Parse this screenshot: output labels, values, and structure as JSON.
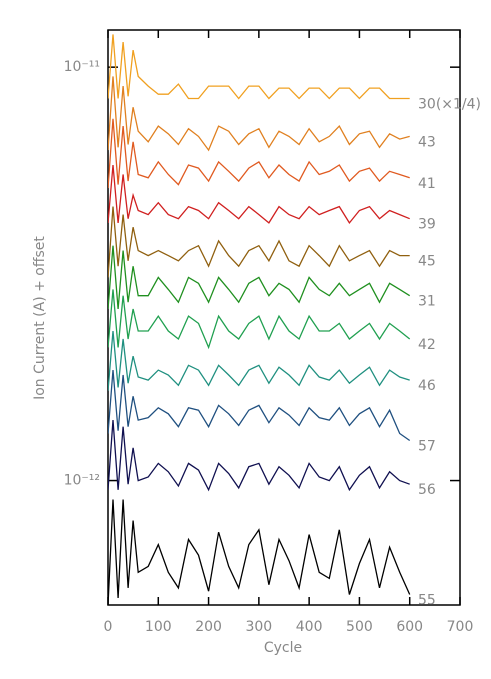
{
  "chart_data": {
    "type": "line",
    "xlabel": "Cycle",
    "ylabel": "Ion Current (A) + offset",
    "ylog": true,
    "xlim": [
      0,
      700
    ],
    "xticks": [
      0,
      100,
      200,
      300,
      400,
      500,
      600,
      700
    ],
    "ylim": [
      5e-13,
      1.23e-11
    ],
    "yticks": [
      {
        "value": 1e-12,
        "label": "10⁻¹²"
      },
      {
        "value": 1e-11,
        "label": "10⁻¹¹"
      }
    ],
    "x": [
      0,
      10,
      20,
      30,
      40,
      50,
      60,
      80,
      100,
      120,
      140,
      160,
      180,
      200,
      220,
      240,
      260,
      280,
      300,
      320,
      340,
      360,
      380,
      400,
      420,
      440,
      460,
      480,
      500,
      520,
      540,
      560,
      580,
      600
    ],
    "series": [
      {
        "name": "30(×1/4)",
        "color": "#f0a020",
        "values": [
          8.4e-12,
          1.2e-11,
          8.4e-12,
          1.15e-11,
          8.5e-12,
          1.1e-11,
          9.5e-12,
          9e-12,
          8.6e-12,
          8.6e-12,
          9.1e-12,
          8.4e-12,
          8.4e-12,
          9e-12,
          9e-12,
          9e-12,
          8.4e-12,
          9e-12,
          9e-12,
          8.4e-12,
          8.9e-12,
          8.9e-12,
          8.4e-12,
          8.9e-12,
          8.9e-12,
          8.4e-12,
          8.9e-12,
          8.9e-12,
          8.4e-12,
          8.9e-12,
          8.9e-12,
          8.4e-12,
          8.4e-12,
          8.4e-12
        ]
      },
      {
        "name": "43",
        "color": "#e08020",
        "values": [
          6.3e-12,
          9.5e-12,
          6.4e-12,
          9e-12,
          6.5e-12,
          8e-12,
          7e-12,
          6.6e-12,
          7.2e-12,
          6.9e-12,
          6.5e-12,
          7.1e-12,
          6.8e-12,
          6.3e-12,
          7.2e-12,
          7e-12,
          6.5e-12,
          6.9e-12,
          7.1e-12,
          6.4e-12,
          7e-12,
          6.8e-12,
          6.5e-12,
          7.1e-12,
          6.6e-12,
          6.8e-12,
          7.2e-12,
          6.5e-12,
          6.9e-12,
          7e-12,
          6.4e-12,
          6.9e-12,
          6.7e-12,
          6.8e-12
        ]
      },
      {
        "name": "41",
        "color": "#e05a20",
        "values": [
          5.1e-12,
          7.5e-12,
          5.2e-12,
          7.2e-12,
          5.3e-12,
          6.6e-12,
          5.5e-12,
          5.4e-12,
          5.9e-12,
          5.5e-12,
          5.2e-12,
          5.8e-12,
          5.7e-12,
          5.3e-12,
          5.9e-12,
          5.6e-12,
          5.3e-12,
          5.7e-12,
          5.9e-12,
          5.4e-12,
          5.8e-12,
          5.5e-12,
          5.3e-12,
          5.9e-12,
          5.5e-12,
          5.6e-12,
          5.8e-12,
          5.3e-12,
          5.6e-12,
          5.7e-12,
          5.3e-12,
          5.6e-12,
          5.5e-12,
          5.4e-12
        ]
      },
      {
        "name": "39",
        "color": "#d02020",
        "values": [
          4.2e-12,
          5.8e-12,
          4.2e-12,
          5.5e-12,
          4.3e-12,
          4.9e-12,
          4.5e-12,
          4.4e-12,
          4.7e-12,
          4.4e-12,
          4.3e-12,
          4.6e-12,
          4.5e-12,
          4.3e-12,
          4.7e-12,
          4.5e-12,
          4.3e-12,
          4.6e-12,
          4.4e-12,
          4.2e-12,
          4.6e-12,
          4.4e-12,
          4.3e-12,
          4.6e-12,
          4.4e-12,
          4.5e-12,
          4.6e-12,
          4.2e-12,
          4.5e-12,
          4.6e-12,
          4.3e-12,
          4.5e-12,
          4.4e-12,
          4.3e-12
        ]
      },
      {
        "name": "45",
        "color": "#906010",
        "values": [
          3.1e-12,
          4.6e-12,
          3.3e-12,
          4.4e-12,
          3.4e-12,
          4.1e-12,
          3.6e-12,
          3.5e-12,
          3.6e-12,
          3.5e-12,
          3.4e-12,
          3.6e-12,
          3.7e-12,
          3.3e-12,
          3.8e-12,
          3.5e-12,
          3.3e-12,
          3.6e-12,
          3.7e-12,
          3.4e-12,
          3.8e-12,
          3.4e-12,
          3.3e-12,
          3.7e-12,
          3.5e-12,
          3.3e-12,
          3.7e-12,
          3.4e-12,
          3.5e-12,
          3.6e-12,
          3.3e-12,
          3.6e-12,
          3.5e-12,
          3.5e-12
        ]
      },
      {
        "name": "31",
        "color": "#209020",
        "values": [
          2.6e-12,
          3.7e-12,
          2.6e-12,
          3.6e-12,
          2.7e-12,
          3.3e-12,
          2.8e-12,
          2.8e-12,
          3.1e-12,
          2.9e-12,
          2.7e-12,
          3.1e-12,
          3e-12,
          2.7e-12,
          3.1e-12,
          2.9e-12,
          2.7e-12,
          3e-12,
          3.1e-12,
          2.8e-12,
          3e-12,
          2.9e-12,
          2.7e-12,
          3.1e-12,
          2.9e-12,
          2.8e-12,
          3e-12,
          2.8e-12,
          2.9e-12,
          3e-12,
          2.7e-12,
          3e-12,
          2.9e-12,
          2.8e-12
        ]
      },
      {
        "name": "42",
        "color": "#20a050",
        "values": [
          2.1e-12,
          2.9e-12,
          2.1e-12,
          2.8e-12,
          2.2e-12,
          2.6e-12,
          2.3e-12,
          2.3e-12,
          2.5e-12,
          2.3e-12,
          2.2e-12,
          2.5e-12,
          2.4e-12,
          2.1e-12,
          2.5e-12,
          2.3e-12,
          2.2e-12,
          2.4e-12,
          2.5e-12,
          2.2e-12,
          2.5e-12,
          2.3e-12,
          2.2e-12,
          2.5e-12,
          2.3e-12,
          2.3e-12,
          2.4e-12,
          2.2e-12,
          2.3e-12,
          2.4e-12,
          2.2e-12,
          2.4e-12,
          2.3e-12,
          2.2e-12
        ]
      },
      {
        "name": "46",
        "color": "#209080",
        "values": [
          1.65e-12,
          2.3e-12,
          1.68e-12,
          2.2e-12,
          1.72e-12,
          2e-12,
          1.78e-12,
          1.75e-12,
          1.85e-12,
          1.8e-12,
          1.7e-12,
          1.9e-12,
          1.85e-12,
          1.7e-12,
          1.9e-12,
          1.8e-12,
          1.7e-12,
          1.85e-12,
          1.9e-12,
          1.72e-12,
          1.88e-12,
          1.8e-12,
          1.7e-12,
          1.9e-12,
          1.78e-12,
          1.75e-12,
          1.85e-12,
          1.72e-12,
          1.8e-12,
          1.88e-12,
          1.7e-12,
          1.85e-12,
          1.78e-12,
          1.75e-12
        ]
      },
      {
        "name": "57",
        "color": "#205080",
        "values": [
          1.3e-12,
          1.85e-12,
          1.32e-12,
          1.8e-12,
          1.35e-12,
          1.6e-12,
          1.4e-12,
          1.42e-12,
          1.5e-12,
          1.45e-12,
          1.35e-12,
          1.5e-12,
          1.48e-12,
          1.35e-12,
          1.52e-12,
          1.45e-12,
          1.36e-12,
          1.48e-12,
          1.52e-12,
          1.38e-12,
          1.5e-12,
          1.44e-12,
          1.36e-12,
          1.5e-12,
          1.42e-12,
          1.4e-12,
          1.5e-12,
          1.36e-12,
          1.45e-12,
          1.5e-12,
          1.35e-12,
          1.48e-12,
          1.3e-12,
          1.25e-12
        ]
      },
      {
        "name": "56",
        "color": "#101050",
        "values": [
          9.5e-13,
          1.4e-12,
          9.5e-13,
          1.35e-12,
          9.8e-13,
          1.2e-12,
          1e-12,
          1.02e-12,
          1.1e-12,
          1.05e-12,
          9.7e-13,
          1.1e-12,
          1.06e-12,
          9.5e-13,
          1.1e-12,
          1.04e-12,
          9.6e-13,
          1.08e-12,
          1.1e-12,
          9.8e-13,
          1.08e-12,
          1.03e-12,
          9.6e-13,
          1.1e-12,
          1.02e-12,
          1e-12,
          1.08e-12,
          9.5e-13,
          1.03e-12,
          1.08e-12,
          9.6e-13,
          1.05e-12,
          1e-12,
          9.8e-13
        ]
      },
      {
        "name": "55",
        "color": "#000000",
        "values": [
          5e-13,
          9e-13,
          5.2e-13,
          9e-13,
          5.5e-13,
          8e-13,
          6e-13,
          6.2e-13,
          7e-13,
          6e-13,
          5.5e-13,
          7.2e-13,
          6.6e-13,
          5.4e-13,
          7.5e-13,
          6.2e-13,
          5.5e-13,
          7e-13,
          7.6e-13,
          5.6e-13,
          7.2e-13,
          6.4e-13,
          5.5e-13,
          7.4e-13,
          6e-13,
          5.8e-13,
          7.6e-13,
          5.3e-13,
          6.3e-13,
          7.2e-13,
          5.5e-13,
          6.9e-13,
          6e-13,
          5.3e-13
        ]
      }
    ]
  }
}
